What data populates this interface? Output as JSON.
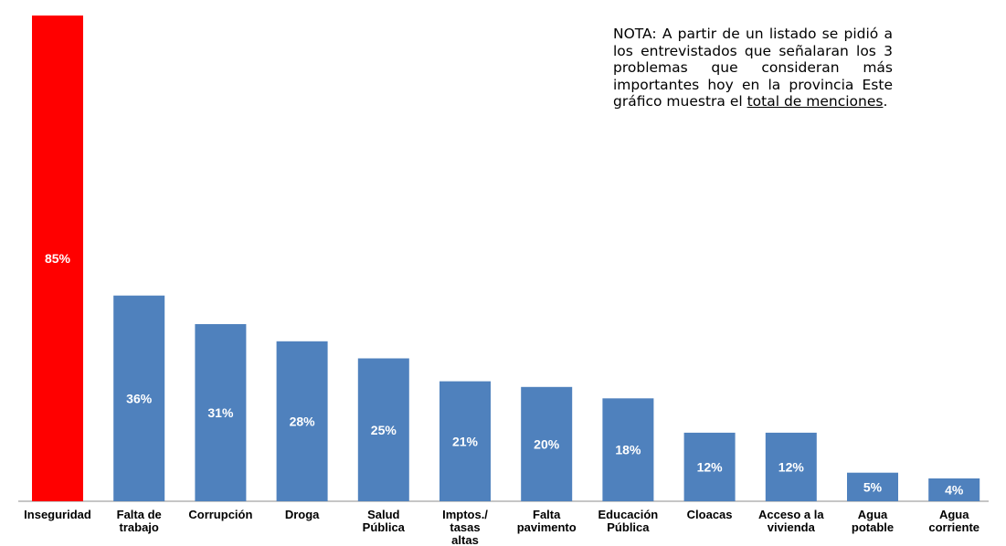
{
  "note": {
    "text_before": "NOTA: A partir de un listado se pidió a los entrevistados que señalaran los 3 problemas que consideran más importantes hoy en la provincia Este gráfico muestra el ",
    "underlined": "total de menciones",
    "text_after": "."
  },
  "chart_data": {
    "type": "bar",
    "title": "",
    "xlabel": "",
    "ylabel": "",
    "ylim": [
      0,
      85
    ],
    "grid": false,
    "legend": "none",
    "value_suffix": "%",
    "categories": [
      [
        "Inseguridad"
      ],
      [
        "Falta de",
        "trabajo"
      ],
      [
        "Corrupción"
      ],
      [
        "Droga"
      ],
      [
        "Salud",
        "Pública"
      ],
      [
        "Imptos./",
        "tasas",
        "altas"
      ],
      [
        "Falta",
        "pavimento"
      ],
      [
        "Educación",
        "Pública"
      ],
      [
        "Cloacas"
      ],
      [
        "Acceso a la",
        "vivienda"
      ],
      [
        "Agua",
        "potable"
      ],
      [
        "Agua",
        "corriente"
      ]
    ],
    "values": [
      85,
      36,
      31,
      28,
      25,
      21,
      20,
      18,
      12,
      12,
      5,
      4
    ],
    "colors": [
      "#ff0000",
      "#4f81bd",
      "#4f81bd",
      "#4f81bd",
      "#4f81bd",
      "#4f81bd",
      "#4f81bd",
      "#4f81bd",
      "#4f81bd",
      "#4f81bd",
      "#4f81bd",
      "#4f81bd"
    ],
    "axis_color": "#b3b3b3"
  }
}
